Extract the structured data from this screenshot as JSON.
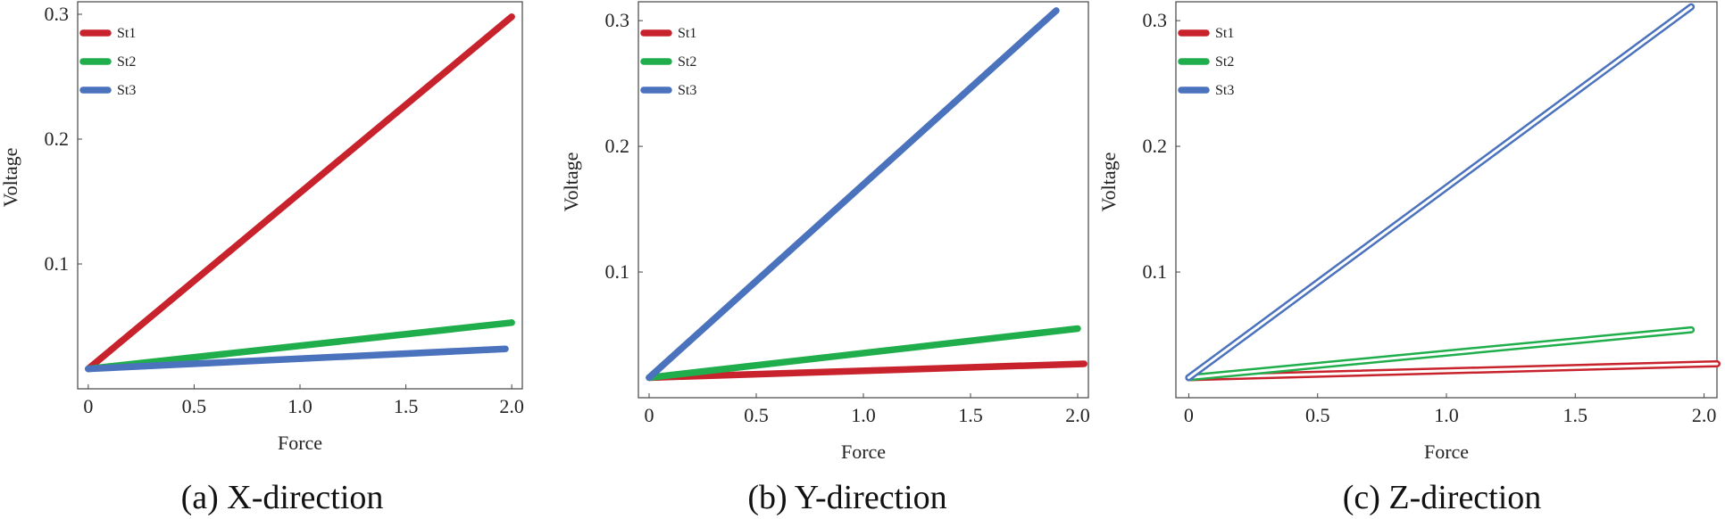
{
  "chart_data": [
    {
      "type": "line",
      "caption": "(a) X-direction",
      "xlabel": "Force",
      "ylabel": "Voltage",
      "xlim": [
        -0.05,
        2.05
      ],
      "ylim": [
        0.0,
        0.31
      ],
      "xticks": [
        0,
        0.5,
        1.0,
        1.5,
        2.0
      ],
      "xtick_labels": [
        "0",
        "0.5",
        "1.0",
        "1.5",
        "2.0"
      ],
      "yticks": [
        0.1,
        0.2,
        0.3
      ],
      "ytick_labels": [
        "0.1",
        "0.2",
        "0.3"
      ],
      "legend_position": "top-left",
      "style": "solid",
      "series": [
        {
          "name": "St1",
          "color": "#c8232c",
          "x": [
            0,
            2.0
          ],
          "y": [
            0.016,
            0.298
          ]
        },
        {
          "name": "St2",
          "color": "#1fae4b",
          "x": [
            0,
            2.0
          ],
          "y": [
            0.016,
            0.053
          ]
        },
        {
          "name": "St3",
          "color": "#4a72bd",
          "x": [
            0,
            1.97
          ],
          "y": [
            0.016,
            0.032
          ]
        }
      ]
    },
    {
      "type": "line",
      "caption": "(b) Y-direction",
      "xlabel": "Force",
      "ylabel": "Voltage",
      "xlim": [
        -0.05,
        2.05
      ],
      "ylim": [
        0.0,
        0.315
      ],
      "xticks": [
        0,
        0.5,
        1.0,
        1.5,
        2.0
      ],
      "xtick_labels": [
        "0",
        "0.5",
        "1.0",
        "1.5",
        "2.0"
      ],
      "yticks": [
        0.1,
        0.2,
        0.3
      ],
      "ytick_labels": [
        "0.1",
        "0.2",
        "0.3"
      ],
      "legend_position": "top-left",
      "style": "solid",
      "series": [
        {
          "name": "St1",
          "color": "#c8232c",
          "x": [
            0,
            2.03
          ],
          "y": [
            0.016,
            0.027
          ]
        },
        {
          "name": "St2",
          "color": "#1fae4b",
          "x": [
            0,
            2.0
          ],
          "y": [
            0.016,
            0.055
          ]
        },
        {
          "name": "St3",
          "color": "#4a72bd",
          "x": [
            0,
            1.9
          ],
          "y": [
            0.016,
            0.308
          ]
        }
      ]
    },
    {
      "type": "line",
      "caption": "(c) Z-direction",
      "xlabel": "Force",
      "ylabel": "Voltage",
      "xlim": [
        -0.05,
        2.05
      ],
      "ylim": [
        0.0,
        0.315
      ],
      "xticks": [
        0,
        0.5,
        1.0,
        1.5,
        2.0
      ],
      "xtick_labels": [
        "0",
        "0.5",
        "1.0",
        "1.5",
        "2.0"
      ],
      "yticks": [
        0.1,
        0.2,
        0.3
      ],
      "ytick_labels": [
        "0.1",
        "0.2",
        "0.3"
      ],
      "legend_position": "top-left",
      "style": "hollow",
      "series": [
        {
          "name": "St1",
          "color": "#c8232c",
          "x": [
            0,
            2.05
          ],
          "y": [
            0.016,
            0.027
          ]
        },
        {
          "name": "St2",
          "color": "#1fae4b",
          "x": [
            0,
            1.95
          ],
          "y": [
            0.016,
            0.054
          ]
        },
        {
          "name": "St3",
          "color": "#4a72bd",
          "x": [
            0,
            1.95
          ],
          "y": [
            0.016,
            0.311
          ]
        }
      ]
    }
  ]
}
